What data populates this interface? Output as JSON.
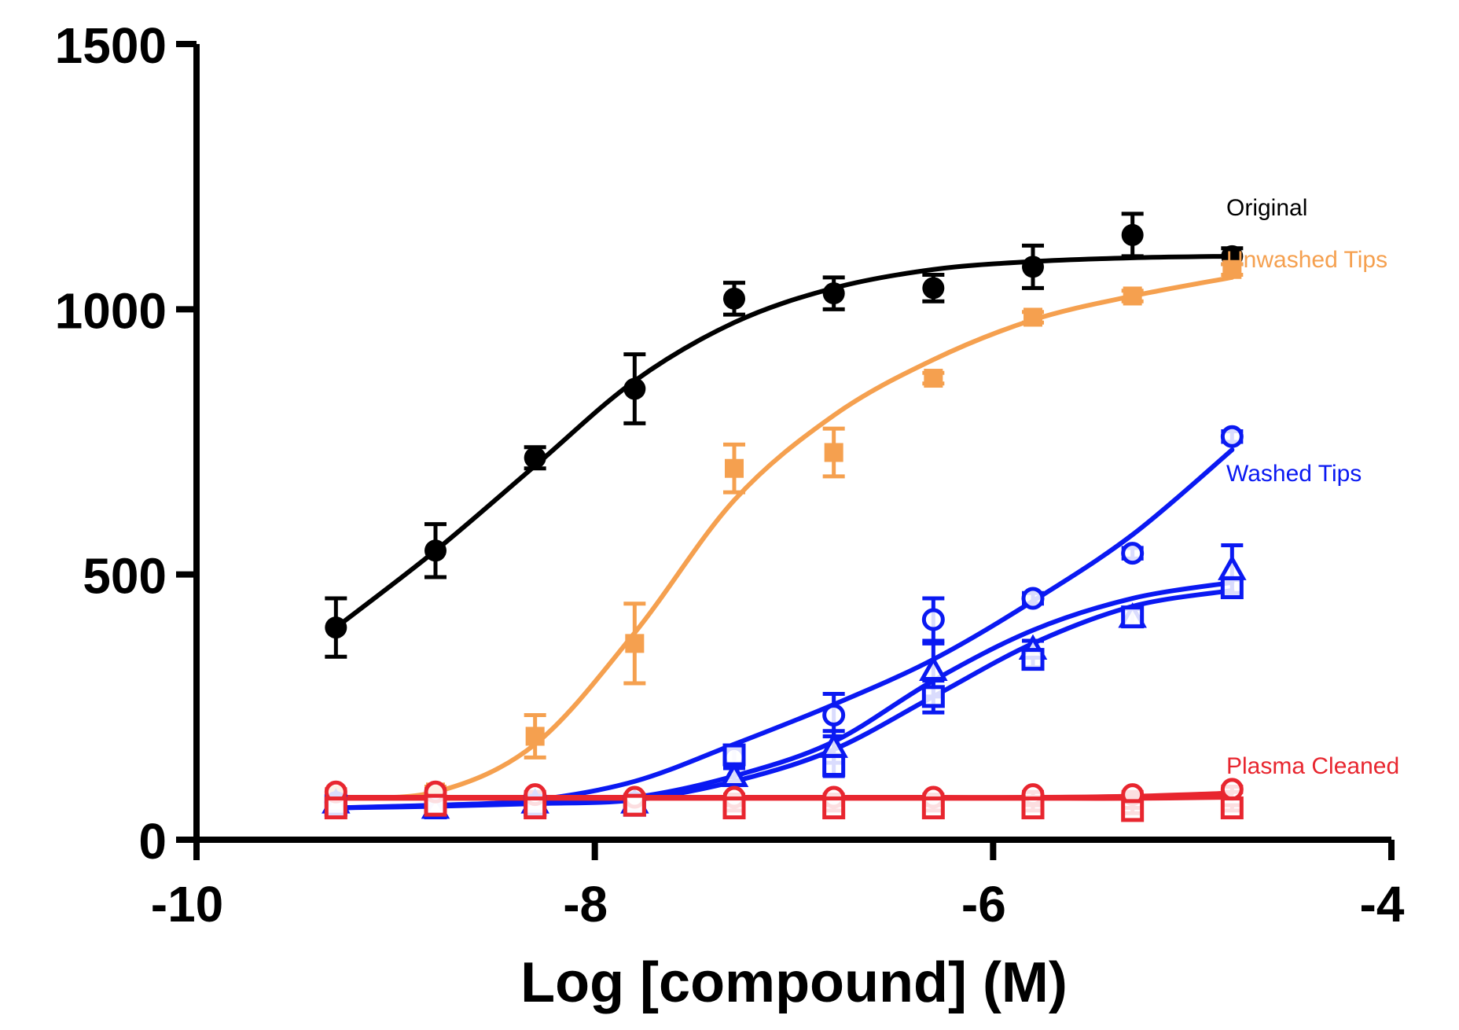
{
  "chart_data": {
    "type": "scatter",
    "title": "",
    "xlabel": "Log [compound] (M)",
    "ylabel": "",
    "xlim": [
      -10,
      -4
    ],
    "ylim": [
      0,
      1500
    ],
    "x_ticks": [
      "-10",
      "-8",
      "-6",
      "-4"
    ],
    "y_ticks": [
      "0",
      "500",
      "1000",
      "1500"
    ],
    "grid": false,
    "legend_position": "right, inline labels",
    "x": [
      -9.3,
      -8.8,
      -8.3,
      -7.8,
      -7.3,
      -6.8,
      -6.3,
      -5.8,
      -5.3,
      -4.8
    ],
    "series": [
      {
        "name": "Original",
        "color": "#000000",
        "marker": "filled-circle",
        "values": [
          400,
          545,
          720,
          850,
          1020,
          1030,
          1040,
          1080,
          1140,
          1100
        ],
        "error": [
          55,
          50,
          20,
          65,
          30,
          30,
          25,
          40,
          40,
          15
        ],
        "curve": [
          400,
          545,
          705,
          865,
          975,
          1040,
          1075,
          1090,
          1097,
          1100
        ]
      },
      {
        "name": "Unwashed Tips",
        "color": "#F5A04F",
        "marker": "filled-square",
        "values": [
          85,
          90,
          195,
          370,
          700,
          730,
          870,
          985,
          1025,
          1075
        ],
        "error": [
          10,
          10,
          40,
          75,
          45,
          45,
          10,
          10,
          10,
          10
        ],
        "curve": [
          80,
          90,
          180,
          390,
          640,
          800,
          905,
          980,
          1025,
          1060
        ]
      },
      {
        "name": "Washed Tips",
        "color": "#0A19F2",
        "marker": "open-circle",
        "values": [
          70,
          60,
          65,
          70,
          155,
          235,
          415,
          455,
          540,
          760
        ],
        "error": [
          10,
          10,
          10,
          10,
          20,
          40,
          40,
          10,
          10,
          10
        ],
        "curve": [
          60,
          65,
          75,
          110,
          180,
          255,
          340,
          450,
          575,
          735
        ]
      },
      {
        "name": "",
        "color": "#0A19F2",
        "marker": "open-triangle",
        "values": [
          70,
          60,
          70,
          70,
          120,
          175,
          320,
          360,
          420,
          510
        ],
        "error": [
          10,
          10,
          10,
          10,
          15,
          30,
          50,
          15,
          15,
          45
        ],
        "curve": [
          60,
          65,
          70,
          80,
          120,
          185,
          300,
          395,
          455,
          485
        ]
      },
      {
        "name": "",
        "color": "#0A19F2",
        "marker": "open-square",
        "values": [
          65,
          60,
          65,
          65,
          160,
          140,
          270,
          340,
          420,
          475
        ],
        "error": [
          10,
          10,
          10,
          10,
          15,
          20,
          30,
          15,
          15,
          15
        ],
        "curve": [
          60,
          63,
          68,
          75,
          110,
          170,
          270,
          370,
          440,
          470
        ]
      },
      {
        "name": "Plasma Cleaned",
        "color": "#E8262F",
        "marker": "open-circle",
        "values": [
          90,
          90,
          85,
          80,
          80,
          80,
          80,
          85,
          85,
          95
        ],
        "error": [
          5,
          5,
          5,
          5,
          5,
          5,
          5,
          5,
          5,
          5
        ],
        "curve": [
          80,
          80,
          80,
          80,
          80,
          80,
          80,
          80,
          82,
          88
        ]
      },
      {
        "name": "",
        "color": "#E8262F",
        "marker": "open-square",
        "values": [
          60,
          65,
          60,
          65,
          60,
          60,
          60,
          60,
          55,
          60
        ],
        "error": [
          5,
          5,
          5,
          5,
          5,
          5,
          5,
          5,
          5,
          5
        ],
        "curve": [
          78,
          78,
          78,
          78,
          78,
          78,
          78,
          78,
          78,
          80
        ]
      }
    ]
  }
}
